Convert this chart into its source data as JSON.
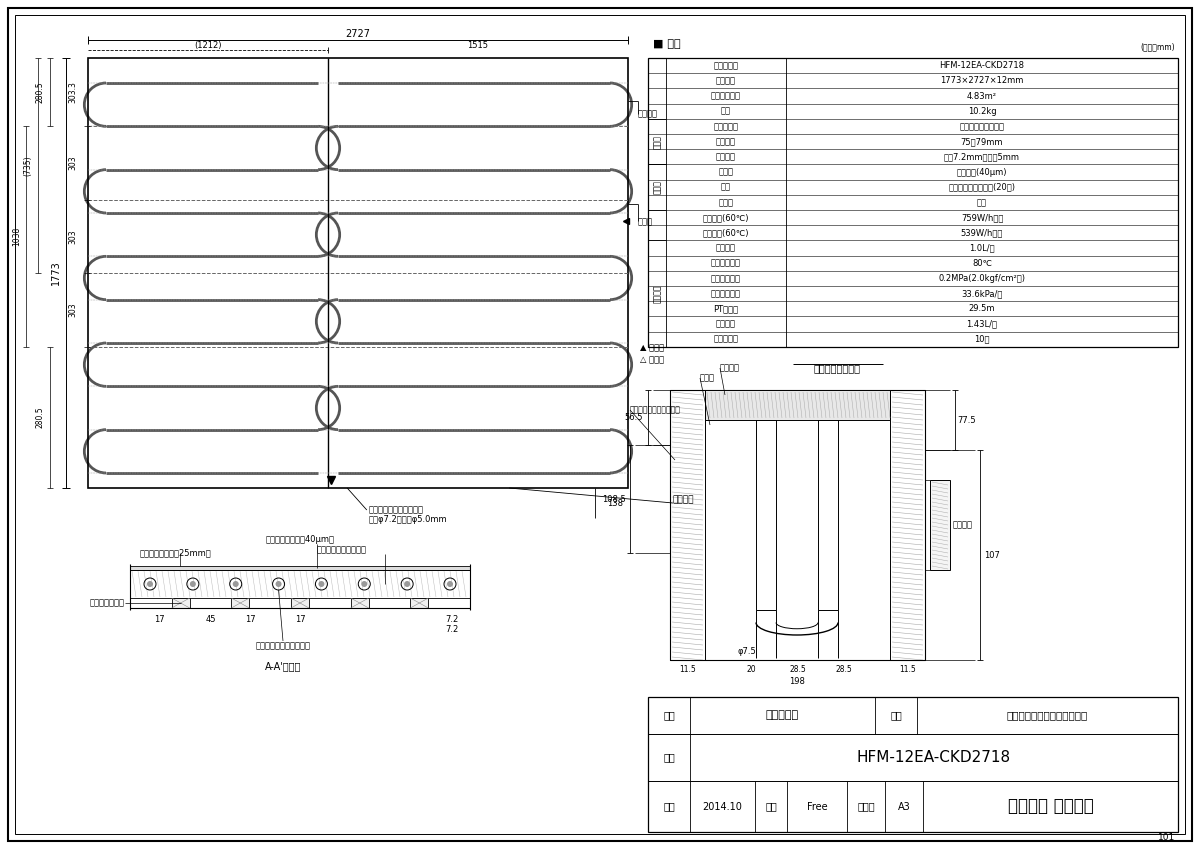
{
  "background_color": "#ffffff",
  "spec_title": "■ 仕様",
  "spec_unit": "(単位：mm)",
  "spec_rows": [
    [
      "名称・型式",
      "HFM-12EA-CKD2718"
    ],
    [
      "外形寸法",
      "1773×2727×12mm"
    ],
    [
      "有効放熱面積",
      "4.83m²"
    ],
    [
      "質量",
      "10.2kg"
    ],
    [
      "材質・材料",
      "架橋ポリエチレン管"
    ],
    [
      "管ピッチ",
      "75～79mm"
    ],
    [
      "管サイズ",
      "外彧7.2mm　内彧5mm"
    ],
    [
      "表面材",
      "アルミ箔(40μm)"
    ],
    [
      "基材",
      "ポリスチレン発泡体(20倍)"
    ],
    [
      "裏面材",
      "なし"
    ],
    [
      "投入熱量(60℃)",
      "759W/h・枚"
    ],
    [
      "暖房能力(60℃)",
      "539W/h・枚"
    ],
    [
      "標準流量",
      "1.0L/分"
    ],
    [
      "最高使用温度",
      "80℃"
    ],
    [
      "最高使用圧力",
      "0.2MPa(2.0kgf/cm²　)"
    ],
    [
      "標準流量抵抗",
      "33.6kPa/枚"
    ],
    [
      "PT相当長",
      "29.5m"
    ],
    [
      "保有水量",
      "1.43L/枚"
    ],
    [
      "小根太溝数",
      "10本"
    ]
  ],
  "group_configs": [
    [
      4,
      3,
      "放熱管"
    ],
    [
      7,
      3,
      "マット"
    ],
    [
      12,
      7,
      "設計関係"
    ]
  ],
  "mat_dim_top": "2727",
  "mat_dim_sub1": "(1212)",
  "mat_dim_sub2": "1515",
  "mat_dim_left": "1773",
  "label_kogeta": "小小根太",
  "label_konejita": "小根太",
  "pipe_label1": "架橋ポリエチレンパイプ",
  "pipe_label2": "外彧φ7.2・内彧φ5.0mm",
  "header_label": "ヘッダー",
  "label_280_5_top": "280.5",
  "label_735": "(735)",
  "label_303": "303",
  "label_303_3": "303.3",
  "label_1038": "1038",
  "label_280_5_bot": "280.5",
  "label_138": "138",
  "cs_label1": "グリーンライン（25mm）",
  "cs_label2": "表面材（アルミ箔40μm）",
  "cs_label3": "フォームポリスチレン",
  "cs_label4": "小根太（合板）",
  "cs_label5": "架橋ポリエチレンパイプ",
  "cs_title": "A-A'詳細図",
  "hd_label_header": "ヘッダー",
  "hd_label_band": "バンド",
  "hd_label_pipe": "架橋ポリエチレンパイプ",
  "hd_label_kogeta": "小小根太",
  "hd_detail_title": "ヘッダー部詳細図",
  "legend_yama": "▲ 山折り",
  "legend_tani": "△ 谷折り",
  "tb_meisho": "外形寸法図",
  "tb_hinmei_label": "品名",
  "tb_hinmei": "小根太入りハード温水マット",
  "tb_meisho_label": "名称",
  "tb_katashiki_label": "型式",
  "tb_katashiki": "HFM-12EA-CKD2718",
  "tb_sakusei_label": "作成",
  "tb_sakusei": "2014.10",
  "tb_shakudo_label": "尺度",
  "tb_shakudo": "Free",
  "tb_size_label": "サイズ",
  "tb_size": "A3",
  "tb_company": "リンナイ 株式会社",
  "page_num": "101"
}
